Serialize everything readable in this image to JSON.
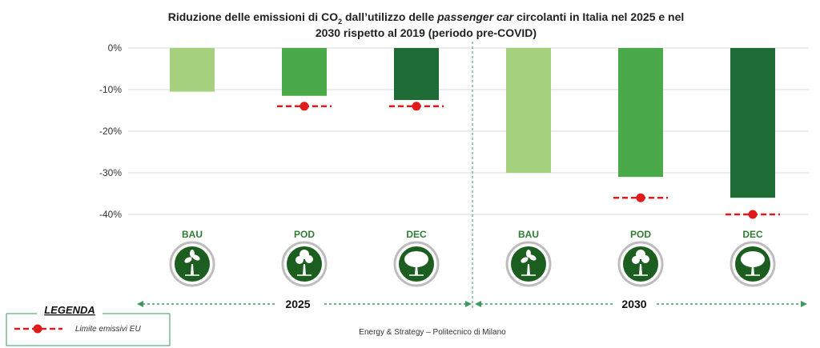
{
  "chart_data": {
    "type": "bar",
    "title": {
      "line1_part1": "Riduzione delle emissioni di CO",
      "line1_sub": "2",
      "line1_part2": " dall’utilizzo delle ",
      "line1_italic": "passenger car",
      "line1_part3": " circolanti in Italia nel 2025 e nel",
      "line2": "2030 rispetto al 2019 (periodo pre-COVID)"
    },
    "ylim": [
      -40,
      0
    ],
    "yticks": [
      {
        "value": 0,
        "label": "0%"
      },
      {
        "value": -10,
        "label": "-10%"
      },
      {
        "value": -20,
        "label": "-20%"
      },
      {
        "value": -30,
        "label": "-30%"
      },
      {
        "value": -40,
        "label": "-40%"
      }
    ],
    "categories": [
      "BAU",
      "POD",
      "DEC",
      "BAU",
      "POD",
      "DEC"
    ],
    "groups": [
      {
        "label": "2025",
        "categories": [
          "BAU",
          "POD",
          "DEC"
        ]
      },
      {
        "label": "2030",
        "categories": [
          "BAU",
          "POD",
          "DEC"
        ]
      }
    ],
    "series": [
      {
        "name": "Riduzione emissioni",
        "values": [
          -10.5,
          -11.5,
          -12.5,
          -30,
          -31,
          -36
        ]
      },
      {
        "name": "Limite emissivi EU",
        "values": [
          null,
          -14,
          -14,
          null,
          -36,
          -40
        ]
      }
    ],
    "colors": {
      "BAU": "#a5d17e",
      "POD": "#4aaa4a",
      "DEC": "#1e6b35",
      "limit": "#e01b1b",
      "label": "#2e7d32",
      "icon_bg": "#1b5e20",
      "arrow": "#3a9a5c"
    },
    "legend": {
      "title": "LEGENDA",
      "items": [
        "Limite emissivi EU"
      ]
    },
    "source": "Energy & Strategy – Politecnico di Milano",
    "icons": [
      "tree-sapling-icon",
      "tree-young-icon",
      "tree-mature-icon",
      "tree-sapling-icon",
      "tree-young-icon",
      "tree-mature-icon"
    ]
  }
}
